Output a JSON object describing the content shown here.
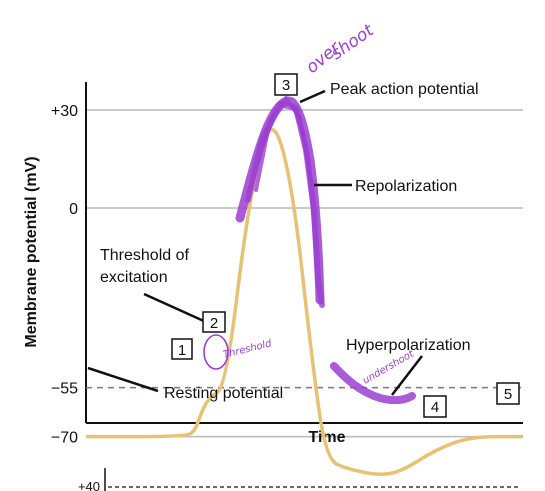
{
  "chart_data": {
    "type": "line",
    "title": "",
    "xlabel": "Time",
    "ylabel": "Membrane potential (mV)",
    "y_ticks": [
      {
        "label": "+30",
        "value": 30
      },
      {
        "label": "0",
        "value": 0
      },
      {
        "label": "-55",
        "value": -55
      },
      {
        "label": "-70",
        "value": -70
      }
    ],
    "ylim": [
      -85,
      60
    ],
    "xlim": [
      0,
      100
    ],
    "grid": "horizontal",
    "threshold_line": {
      "value": -55,
      "style": "dashed",
      "color": "#8a6a9a"
    },
    "series": [
      {
        "color": "#e8c274",
        "points": [
          [
            0,
            -70
          ],
          [
            23,
            -70
          ],
          [
            25,
            -68
          ],
          [
            26,
            -64
          ],
          [
            28,
            -58
          ],
          [
            32,
            -55
          ],
          [
            37,
            0
          ],
          [
            42,
            30
          ],
          [
            47,
            10
          ],
          [
            52,
            -50
          ],
          [
            55,
            -77
          ],
          [
            60,
            -80
          ],
          [
            68,
            -82
          ],
          [
            73,
            -80
          ],
          [
            80,
            -74
          ],
          [
            88,
            -70
          ],
          [
            100,
            -70
          ]
        ]
      }
    ],
    "annotations": [
      {
        "box": "1",
        "text": "",
        "x": 21,
        "y": -66
      },
      {
        "box": "2",
        "text": "",
        "x": 29,
        "y": -53
      },
      {
        "box": "3",
        "text": "",
        "x": 42,
        "y": 38
      },
      {
        "box": "4",
        "text": "",
        "x": 78,
        "y": -86
      },
      {
        "box": "5",
        "text": "",
        "x": 95,
        "y": -78
      }
    ],
    "labels": {
      "peak": "Peak action potential",
      "repolarization": "Repolarization",
      "threshold": [
        "Threshold of",
        "excitation"
      ],
      "hyperpolarization": "Hyperpolarization",
      "resting": "Resting potential"
    },
    "handwriting": {
      "overshoot": [
        "over",
        "shoot"
      ],
      "threshold": "Threshold",
      "undershoot": "undershoot",
      "color": "#9b3fd1"
    },
    "second_chart_tick": "+40"
  }
}
